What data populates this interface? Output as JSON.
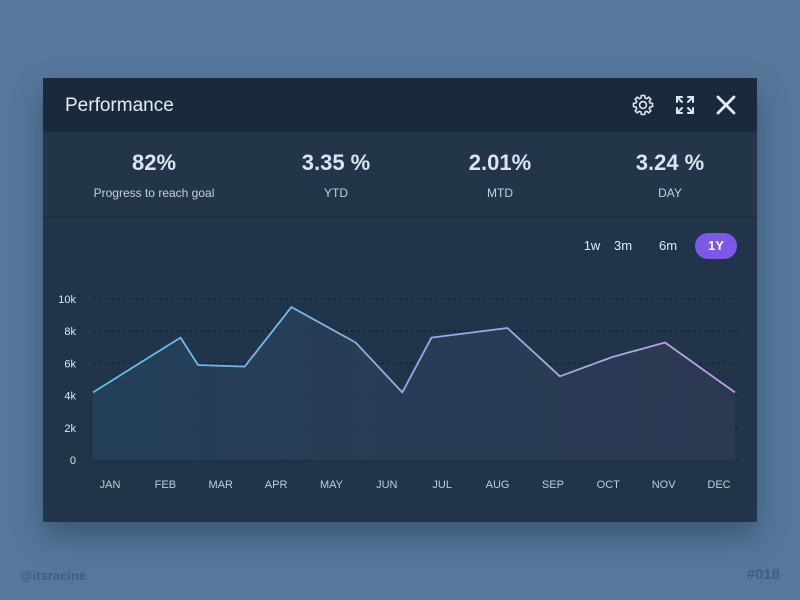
{
  "window": {
    "title": "Performance",
    "icons": [
      "gear-icon",
      "expand-icon",
      "close-icon"
    ]
  },
  "stats": [
    {
      "value": "82%",
      "label": "Progress to reach goal"
    },
    {
      "value": "3.35 %",
      "label": "YTD"
    },
    {
      "value": "2.01%",
      "label": "MTD"
    },
    {
      "value": "3.24 %",
      "label": "DAY"
    }
  ],
  "ranges": {
    "options": [
      "1w",
      "3m",
      "6m",
      "1Y"
    ],
    "selected": "1Y"
  },
  "colors": {
    "accent": "#7e57e6",
    "line_start": "#5bc0e8",
    "line_end": "#c39be8",
    "background": "#56789b",
    "card": "#223549"
  },
  "chart_data": {
    "type": "area",
    "categories": [
      "JAN",
      "FEB",
      "MAR",
      "APR",
      "MAY",
      "JUN",
      "JUL",
      "AUG",
      "SEP",
      "OCT",
      "NOV",
      "DEC"
    ],
    "x_labels": [
      "JAN",
      "FEB",
      "MAR",
      "APR",
      "MAY",
      "JUN",
      "JUL",
      "AUG",
      "SEP",
      "OCT",
      "NOV",
      "DEC"
    ],
    "series": [
      {
        "points": [
          {
            "x": 0,
            "y": 4200
          },
          {
            "x": 1.5,
            "y": 7600
          },
          {
            "x": 1.8,
            "y": 5900
          },
          {
            "x": 2.6,
            "y": 5800
          },
          {
            "x": 3.4,
            "y": 9500
          },
          {
            "x": 4.5,
            "y": 7300
          },
          {
            "x": 5.3,
            "y": 4200
          },
          {
            "x": 5.8,
            "y": 7600
          },
          {
            "x": 7.1,
            "y": 8200
          },
          {
            "x": 8.0,
            "y": 5200
          },
          {
            "x": 8.9,
            "y": 6400
          },
          {
            "x": 9.8,
            "y": 7300
          },
          {
            "x": 11,
            "y": 4200
          }
        ]
      }
    ],
    "y_ticks": [
      {
        "value": 0,
        "label": "0"
      },
      {
        "value": 2000,
        "label": "2k"
      },
      {
        "value": 4000,
        "label": "4k"
      },
      {
        "value": 6000,
        "label": "6k"
      },
      {
        "value": 8000,
        "label": "8k"
      },
      {
        "value": 10000,
        "label": "10k"
      }
    ],
    "ylim": [
      0,
      10000
    ],
    "grid": true,
    "legend": "none"
  },
  "footer": {
    "left": "@itsracine",
    "right": "#018"
  }
}
